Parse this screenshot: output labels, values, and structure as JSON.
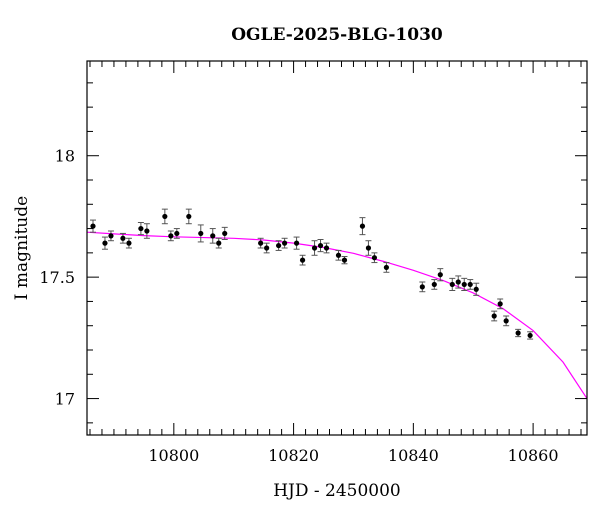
{
  "chart_data": {
    "type": "scatter",
    "title": "OGLE-2025-BLG-1030",
    "xlabel": "HJD - 2450000",
    "ylabel": "I magnitude",
    "xlim": [
      10785.5,
      10869
    ],
    "ylim": [
      18.39,
      16.85
    ],
    "y_inverted": true,
    "x_major_ticks": [
      10800,
      10820,
      10840,
      10860
    ],
    "x_minor_step": 2,
    "y_major_ticks": [
      17,
      17.5,
      18
    ],
    "y_minor_step": 0.1,
    "grid": false,
    "colors": {
      "points": "#000000",
      "errorbars": "#555555",
      "model": "#ff00ff",
      "frame": "#000000"
    },
    "series": [
      {
        "kind": "points_with_errorbars",
        "x": [
          10786.5,
          10788.5,
          10789.5,
          10791.5,
          10792.5,
          10794.5,
          10795.5,
          10798.5,
          10799.5,
          10800.5,
          10802.5,
          10804.5,
          10806.5,
          10807.5,
          10808.5,
          10814.5,
          10815.5,
          10817.5,
          10818.5,
          10820.5,
          10821.5,
          10823.5,
          10824.5,
          10825.5,
          10827.5,
          10828.5,
          10831.5,
          10832.5,
          10833.5,
          10835.5,
          10841.5,
          10843.5,
          10844.5,
          10846.5,
          10847.5,
          10848.5,
          10849.5,
          10850.5,
          10853.5,
          10854.5,
          10855.5,
          10857.5,
          10859.5
        ],
        "y": [
          17.71,
          17.64,
          17.67,
          17.66,
          17.64,
          17.7,
          17.69,
          17.75,
          17.67,
          17.68,
          17.75,
          17.68,
          17.67,
          17.64,
          17.68,
          17.64,
          17.62,
          17.63,
          17.64,
          17.64,
          17.57,
          17.62,
          17.63,
          17.62,
          17.59,
          17.57,
          17.71,
          17.62,
          17.58,
          17.54,
          17.46,
          17.47,
          17.51,
          17.47,
          17.48,
          17.47,
          17.47,
          17.45,
          17.34,
          17.39,
          17.32,
          17.27,
          17.26
        ],
        "err": [
          0.025,
          0.025,
          0.02,
          0.02,
          0.02,
          0.025,
          0.03,
          0.03,
          0.02,
          0.02,
          0.03,
          0.035,
          0.03,
          0.02,
          0.025,
          0.02,
          0.02,
          0.02,
          0.02,
          0.025,
          0.02,
          0.03,
          0.025,
          0.02,
          0.02,
          0.015,
          0.035,
          0.03,
          0.02,
          0.02,
          0.02,
          0.02,
          0.025,
          0.025,
          0.025,
          0.025,
          0.02,
          0.025,
          0.02,
          0.02,
          0.02,
          0.015,
          0.015
        ]
      },
      {
        "kind": "model_curve",
        "x": [
          10785.5,
          10790,
          10795,
          10800,
          10805,
          10810,
          10815,
          10820,
          10825,
          10830,
          10835,
          10840,
          10845,
          10850,
          10855,
          10860,
          10865,
          10869
        ],
        "y": [
          17.685,
          17.678,
          17.671,
          17.666,
          17.663,
          17.66,
          17.653,
          17.64,
          17.622,
          17.598,
          17.565,
          17.528,
          17.486,
          17.435,
          17.37,
          17.28,
          17.15,
          17.0
        ]
      }
    ]
  }
}
